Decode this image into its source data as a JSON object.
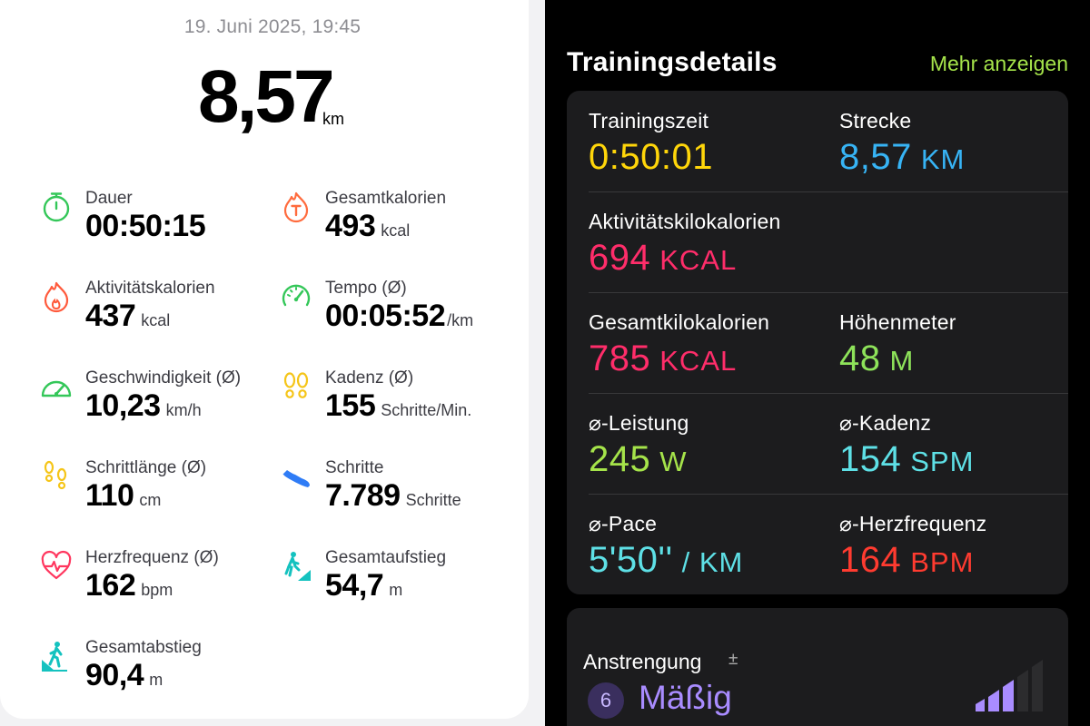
{
  "left": {
    "datetime": "19. Juni 2025, 19:45",
    "distance": {
      "value": "8,57",
      "unit": "km"
    },
    "stats": [
      {
        "label": "Dauer",
        "value": "00:50:15",
        "unit": "",
        "icon": "stopwatch-icon"
      },
      {
        "label": "Gesamtkalorien",
        "value": "493",
        "unit": "kcal",
        "icon": "calories-flame-icon"
      },
      {
        "label": "Aktivitätskalorien",
        "value": "437",
        "unit": "kcal",
        "icon": "flame-icon"
      },
      {
        "label": "Tempo (Ø)",
        "value": "00:05:52",
        "unit": "/km",
        "icon": "speedometer-icon"
      },
      {
        "label": "Geschwindigkeit (Ø)",
        "value": "10,23",
        "unit": "km/h",
        "icon": "gauge-icon"
      },
      {
        "label": "Kadenz (Ø)",
        "value": "155",
        "unit": "Schritte/Min.",
        "icon": "footprints-icon"
      },
      {
        "label": "Schrittlänge (Ø)",
        "value": "110",
        "unit": "cm",
        "icon": "footprints-icon"
      },
      {
        "label": "Schritte",
        "value": "7.789",
        "unit": "Schritte",
        "icon": "shoe-icon"
      },
      {
        "label": "Herzfrequenz (Ø)",
        "value": "162",
        "unit": "bpm",
        "icon": "heart-rate-icon"
      },
      {
        "label": "Gesamtaufstieg",
        "value": "54,7",
        "unit": "m",
        "icon": "hiker-ascent-icon"
      },
      {
        "label": "Gesamtabstieg",
        "value": "90,4",
        "unit": "m",
        "icon": "hiker-descent-icon"
      }
    ],
    "colors": {
      "stopwatch": "#34c759",
      "calories": "#ff6b3d",
      "flame": "#ff5a3c",
      "speedometer": "#34c759",
      "gauge": "#34c759",
      "footprints": "#f5c518",
      "shoe": "#2f7cf6",
      "heart": "#ff375f",
      "hiker": "#14c2bf"
    }
  },
  "right": {
    "title": "Trainingsdetails",
    "more_label": "Mehr anzeigen",
    "metrics": [
      {
        "label": "Trainingszeit",
        "value": "0:50:01",
        "unit": "",
        "color": "#ffd60a"
      },
      {
        "label": "Strecke",
        "value": "8,57",
        "unit": "KM",
        "color": "#37b4f5"
      },
      {
        "label": "Aktivitätskilokalorien",
        "value": "694",
        "unit": "KCAL",
        "color": "#ff2d6a"
      },
      {
        "label": "Gesamtkilokalorien",
        "value": "785",
        "unit": "KCAL",
        "color": "#ff2d6a"
      },
      {
        "label": "Höhenmeter",
        "value": "48",
        "unit": "M",
        "color": "#8ee35a"
      },
      {
        "label": "⌀-Leistung",
        "value": "245",
        "unit": "W",
        "color": "#a5e34a"
      },
      {
        "label": "⌀-Kadenz",
        "value": "154",
        "unit": "SPM",
        "color": "#5ee0e6"
      },
      {
        "label": "⌀-Pace",
        "value": "5'50''",
        "unit": "/ KM",
        "color": "#5ee0e6"
      },
      {
        "label": "⌀-Herzfrequenz",
        "value": "164",
        "unit": "BPM",
        "color": "#ff3b30"
      }
    ],
    "effort": {
      "label": "Anstrengung",
      "pm": "±",
      "level": "6",
      "level_text": "Mäßig",
      "color": "#a98cff"
    }
  }
}
